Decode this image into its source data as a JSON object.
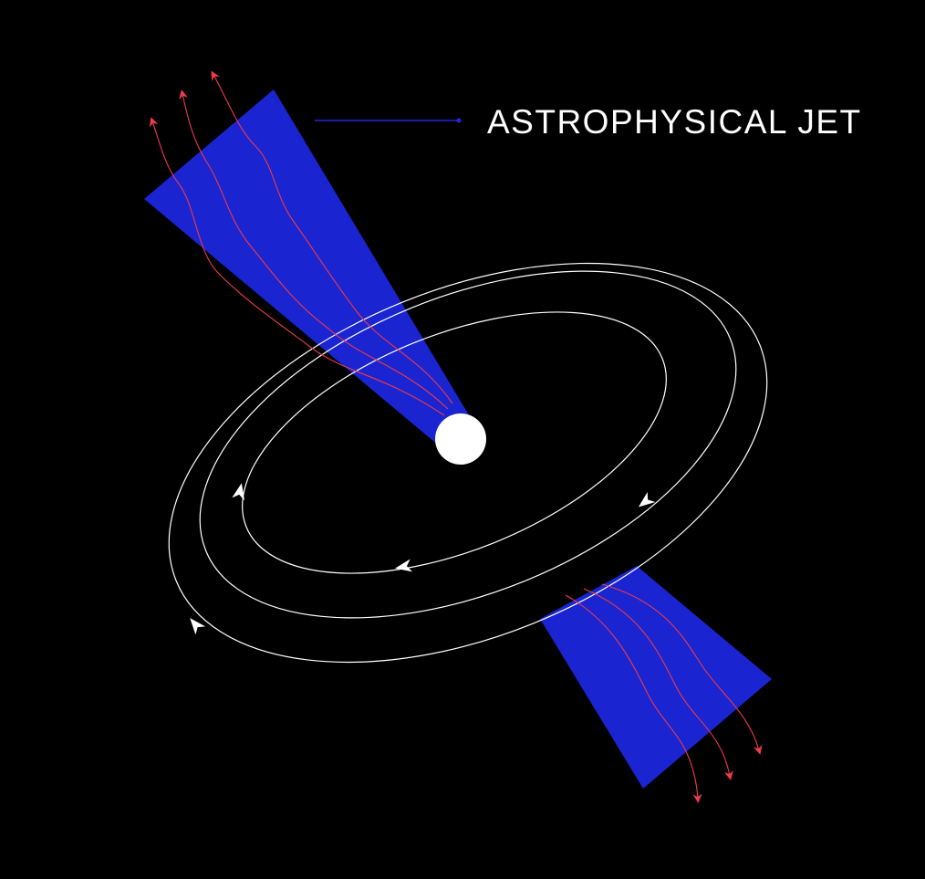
{
  "diagram": {
    "label": "ASTROPHYSICAL JET"
  },
  "colors": {
    "background": "#000000",
    "jet": "#1a24d0",
    "field_lines": "#ee3a4b",
    "disk_lines": "#ffffff",
    "central_object": "#ffffff",
    "leader_line": "#1e2ad8"
  },
  "icons": {
    "central_object": "white-disc",
    "orbit_arrow": "arrowhead",
    "field_line_arrow": "arrowhead"
  }
}
